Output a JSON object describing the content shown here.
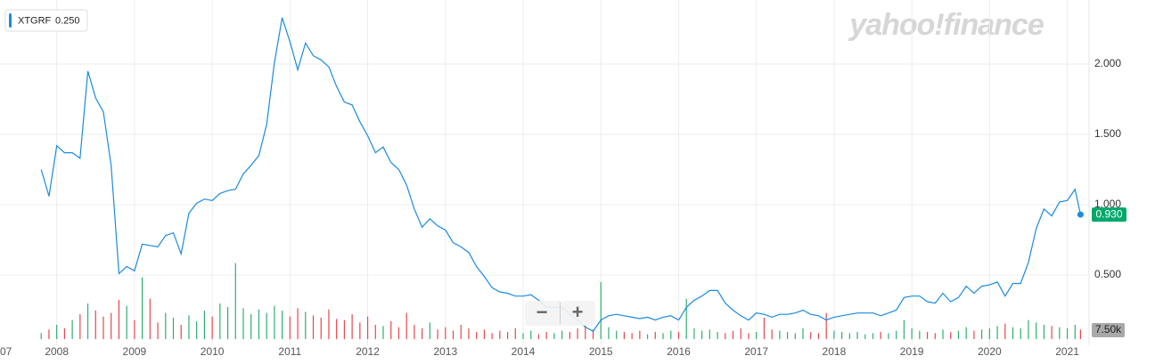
{
  "chart_data": {
    "type": "line",
    "watermark": "yahoo!finance",
    "legend": {
      "symbol": "XTGRF",
      "value_label": "0.250"
    },
    "current_price": 0.93,
    "current_price_label": "0.930",
    "zoom_out": "−",
    "zoom_in": "+",
    "xlim": [
      2007.27,
      2021.28
    ],
    "xticks": [
      {
        "value": 2007,
        "label": "07"
      },
      2008,
      2009,
      2010,
      2011,
      2012,
      2013,
      2014,
      2015,
      2016,
      2017,
      2018,
      2019,
      2020,
      2021
    ],
    "ylim": [
      0,
      2.456
    ],
    "yticks": [
      {
        "value": 0.5,
        "label": "0.500"
      },
      {
        "value": 1,
        "label": "1.000"
      },
      {
        "value": 1.5,
        "label": "1.500"
      },
      {
        "value": 2,
        "label": "2.000"
      }
    ],
    "volume_lim": [
      0,
      60000
    ],
    "volume_ticks": [
      {
        "value": 7500,
        "label": "7.50k"
      }
    ],
    "grid": true,
    "up_color": "#2fae6f",
    "down_color": "#e8474c",
    "x": [
      2007.8,
      2007.9,
      2008.0,
      2008.1,
      2008.2,
      2008.3,
      2008.4,
      2008.5,
      2008.6,
      2008.7,
      2008.8,
      2008.9,
      2009.0,
      2009.1,
      2009.2,
      2009.3,
      2009.4,
      2009.5,
      2009.6,
      2009.7,
      2009.8,
      2009.9,
      2010.0,
      2010.1,
      2010.2,
      2010.3,
      2010.4,
      2010.5,
      2010.6,
      2010.7,
      2010.8,
      2010.9,
      2011.0,
      2011.1,
      2011.2,
      2011.3,
      2011.4,
      2011.5,
      2011.6,
      2011.7,
      2011.8,
      2011.9,
      2012.0,
      2012.1,
      2012.2,
      2012.3,
      2012.4,
      2012.5,
      2012.6,
      2012.7,
      2012.8,
      2012.9,
      2013.0,
      2013.1,
      2013.2,
      2013.3,
      2013.4,
      2013.5,
      2013.6,
      2013.7,
      2013.8,
      2013.9,
      2014.0,
      2014.1,
      2014.2,
      2014.3,
      2014.4,
      2014.5,
      2014.6,
      2014.7,
      2014.8,
      2014.9,
      2015.0,
      2015.1,
      2015.2,
      2015.3,
      2015.4,
      2015.5,
      2015.6,
      2015.7,
      2015.8,
      2015.9,
      2016.0,
      2016.1,
      2016.2,
      2016.3,
      2016.4,
      2016.5,
      2016.6,
      2016.7,
      2016.8,
      2016.9,
      2017.0,
      2017.1,
      2017.2,
      2017.3,
      2017.4,
      2017.5,
      2017.6,
      2017.7,
      2017.8,
      2017.9,
      2018.0,
      2018.1,
      2018.2,
      2018.3,
      2018.4,
      2018.5,
      2018.6,
      2018.7,
      2018.8,
      2018.9,
      2019.0,
      2019.1,
      2019.2,
      2019.3,
      2019.4,
      2019.5,
      2019.6,
      2019.7,
      2019.8,
      2019.9,
      2020.0,
      2020.1,
      2020.2,
      2020.3,
      2020.4,
      2020.5,
      2020.6,
      2020.7,
      2020.8,
      2020.9,
      2021.0,
      2021.1,
      2021.17
    ],
    "series": [
      {
        "name": "XTGRF",
        "color": "#1a8be0",
        "values": [
          1.25,
          1.06,
          1.42,
          1.37,
          1.37,
          1.33,
          1.95,
          1.76,
          1.66,
          1.28,
          0.51,
          0.56,
          0.53,
          0.72,
          0.71,
          0.7,
          0.78,
          0.8,
          0.65,
          0.94,
          1.01,
          1.04,
          1.03,
          1.08,
          1.1,
          1.11,
          1.22,
          1.28,
          1.35,
          1.57,
          2.01,
          2.33,
          2.16,
          1.96,
          2.15,
          2.06,
          2.03,
          1.98,
          1.84,
          1.73,
          1.71,
          1.59,
          1.49,
          1.37,
          1.41,
          1.3,
          1.25,
          1.14,
          0.97,
          0.84,
          0.9,
          0.85,
          0.82,
          0.73,
          0.7,
          0.66,
          0.56,
          0.49,
          0.41,
          0.38,
          0.37,
          0.35,
          0.35,
          0.36,
          0.32,
          0.27,
          0.27,
          0.27,
          0.22,
          0.18,
          0.13,
          0.1,
          0.18,
          0.21,
          0.22,
          0.21,
          0.2,
          0.19,
          0.2,
          0.18,
          0.2,
          0.21,
          0.18,
          0.27,
          0.32,
          0.35,
          0.39,
          0.39,
          0.3,
          0.25,
          0.21,
          0.18,
          0.23,
          0.22,
          0.2,
          0.22,
          0.22,
          0.23,
          0.25,
          0.22,
          0.21,
          0.18,
          0.2,
          0.21,
          0.22,
          0.23,
          0.23,
          0.23,
          0.21,
          0.23,
          0.25,
          0.34,
          0.35,
          0.35,
          0.31,
          0.3,
          0.37,
          0.31,
          0.34,
          0.42,
          0.37,
          0.42,
          0.43,
          0.45,
          0.35,
          0.44,
          0.44,
          0.59,
          0.83,
          0.97,
          0.92,
          1.02,
          1.03,
          1.11,
          0.93
        ]
      },
      {
        "name": "Volume",
        "axis": "volume",
        "values": [
          5000,
          8000,
          12000,
          9000,
          16000,
          21000,
          30000,
          24000,
          19000,
          22000,
          33000,
          28000,
          16000,
          52000,
          34000,
          14000,
          22000,
          18000,
          12000,
          20000,
          15000,
          24000,
          19000,
          30000,
          27000,
          64000,
          26000,
          21000,
          25000,
          22000,
          28000,
          24000,
          19000,
          26000,
          23000,
          20000,
          18000,
          25000,
          17000,
          16000,
          21000,
          14000,
          19000,
          12000,
          11000,
          15000,
          10000,
          22000,
          12000,
          9000,
          14000,
          8000,
          10000,
          7000,
          12000,
          9000,
          6000,
          8000,
          5000,
          7000,
          6000,
          9000,
          5000,
          7000,
          4000,
          6000,
          5000,
          7000,
          6000,
          9000,
          12000,
          8000,
          48000,
          10000,
          7000,
          6000,
          5000,
          7000,
          4000,
          6000,
          5000,
          7000,
          6000,
          34000,
          9000,
          7000,
          8000,
          6000,
          5000,
          7000,
          9000,
          5000,
          6000,
          18000,
          8000,
          7000,
          6000,
          5000,
          9000,
          6000,
          5000,
          22000,
          7000,
          6000,
          5000,
          6000,
          4000,
          5000,
          6000,
          5000,
          7000,
          16000,
          9000,
          7000,
          6000,
          5000,
          8000,
          6000,
          7000,
          10000,
          7000,
          8000,
          9000,
          11000,
          13000,
          10000,
          9000,
          16000,
          14000,
          12000,
          11000,
          10000,
          9000,
          12000,
          8000
        ]
      }
    ]
  }
}
